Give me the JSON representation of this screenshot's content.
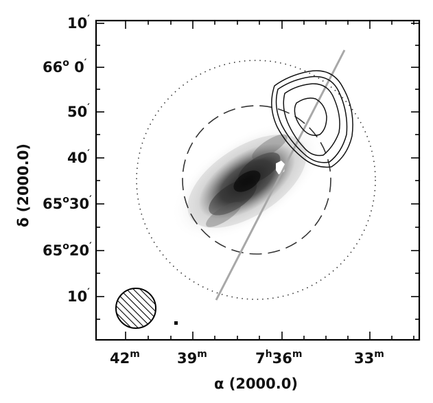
{
  "figure": {
    "xlabel": "α (2000.0)",
    "ylabel": "δ (2000.0)",
    "x_ticks": [
      {
        "main": "42",
        "sup": "m"
      },
      {
        "main": "39",
        "sup": "m"
      },
      {
        "main": "7",
        "sup": "h",
        "main2": "36",
        "sup2": "m"
      },
      {
        "main": "33",
        "sup": "m"
      }
    ],
    "y_ticks": [
      {
        "main": "10",
        "sup": "′"
      },
      {
        "main": "66",
        "sup": "o",
        "main2": " 0",
        "sup2": "′"
      },
      {
        "main": "50",
        "sup": "′"
      },
      {
        "main": "40",
        "sup": "′"
      },
      {
        "main": "65",
        "sup": "o",
        "main2": "30",
        "sup2": "′"
      },
      {
        "main": "65",
        "sup": "o",
        "main2": "20",
        "sup2": "′"
      },
      {
        "main": "10",
        "sup": "′"
      }
    ],
    "colors": {
      "frame": "#000000",
      "galaxy": "#444444",
      "slit_line": "#a8a8a8",
      "contours": "#111111",
      "circles": "#333333"
    },
    "icons": [
      "beam-ellipse-icon"
    ]
  }
}
